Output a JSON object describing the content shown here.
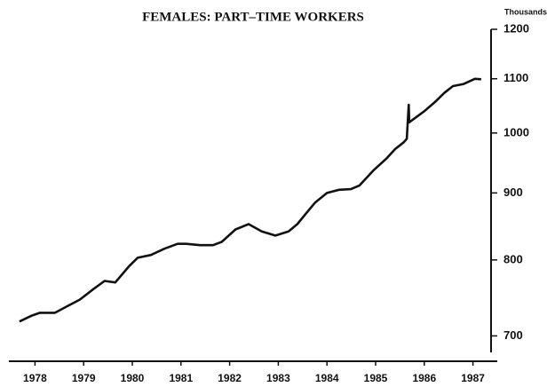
{
  "chart_data": {
    "type": "line",
    "title": "FEMALES: PART–TIME WORKERS",
    "y_axis_label": "Thousands",
    "color": "#111111",
    "log_scale_y": true,
    "x": [
      1978.18,
      1978.42,
      1978.6,
      1978.91,
      1979.15,
      1979.42,
      1979.7,
      1979.93,
      1980.15,
      1980.43,
      1980.61,
      1980.88,
      1981.16,
      1981.43,
      1981.61,
      1981.89,
      1982.16,
      1982.34,
      1982.62,
      1982.89,
      1983.16,
      1983.44,
      1983.71,
      1983.89,
      1984.08,
      1984.26,
      1984.5,
      1984.75,
      1984.99,
      1985.17,
      1985.45,
      1985.72,
      1985.9,
      1986.08,
      1986.14,
      1986.18,
      1986.19,
      1986.5,
      1986.72,
      1986.91,
      1987.09,
      1987.31,
      1987.54,
      1987.67
    ],
    "values": [
      718,
      725,
      729,
      729,
      737,
      746,
      760,
      771,
      769,
      791,
      803,
      807,
      816,
      823,
      823,
      821,
      821,
      826,
      844,
      852,
      841,
      835,
      841,
      852,
      869,
      885,
      900,
      905,
      906,
      912,
      936,
      956,
      972,
      984,
      990,
      1051,
      1019,
      1039,
      1056,
      1073,
      1086,
      1090,
      1100,
      1099
    ],
    "xlim": [
      1978,
      1988
    ],
    "xticks": [
      {
        "value": 1978.5,
        "label": "1978"
      },
      {
        "value": 1979.5,
        "label": "1979"
      },
      {
        "value": 1980.5,
        "label": "1980"
      },
      {
        "value": 1981.5,
        "label": "1981"
      },
      {
        "value": 1982.5,
        "label": "1982"
      },
      {
        "value": 1983.5,
        "label": "1983"
      },
      {
        "value": 1984.5,
        "label": "1984"
      },
      {
        "value": 1985.5,
        "label": "1985"
      },
      {
        "value": 1986.5,
        "label": "1986"
      },
      {
        "value": 1987.5,
        "label": "1987"
      }
    ],
    "ylim": [
      680,
      1200
    ],
    "yticks": [
      700,
      800,
      900,
      1000,
      1100,
      1200
    ]
  }
}
